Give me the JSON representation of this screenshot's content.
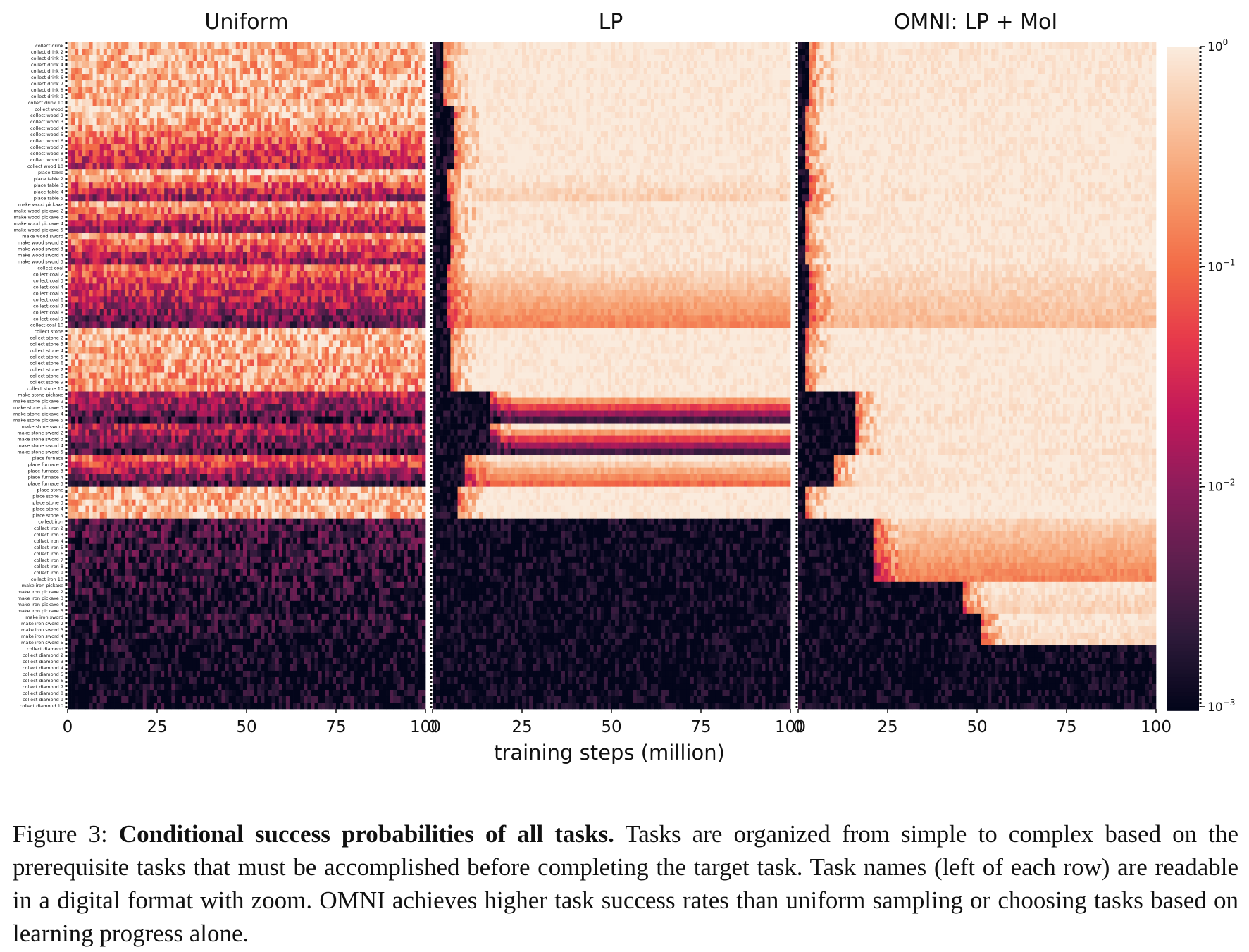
{
  "chart_data": {
    "type": "heatmap",
    "panels": [
      {
        "title": "Uniform",
        "key": "uniform"
      },
      {
        "title": "LP",
        "key": "lp"
      },
      {
        "title": "OMNI: LP + MoI",
        "key": "omni"
      }
    ],
    "xlabel": "training steps (million)",
    "x_ticks": [
      "0",
      "25",
      "50",
      "75",
      "100"
    ],
    "xlim": [
      0,
      100
    ],
    "colorbar": {
      "scale": "log",
      "range": [
        0.001,
        1
      ],
      "tick_labels": [
        {
          "base": "10",
          "exp": "0",
          "value": 1
        },
        {
          "base": "10",
          "exp": "−1",
          "value": 0.1
        },
        {
          "base": "10",
          "exp": "−2",
          "value": 0.01
        },
        {
          "base": "10",
          "exp": "−3",
          "value": 0.001
        }
      ],
      "colors": [
        "#03051a",
        "#2e1a3a",
        "#5d1f4e",
        "#8c1d5b",
        "#c1185a",
        "#e6384b",
        "#f26a46",
        "#f69968",
        "#f9c3a0",
        "#faebdd"
      ]
    },
    "task_groups": [
      {
        "name": "collect drink",
        "rows": 10,
        "difficulty": {
          "uniform": [
            0.35,
            0.35
          ],
          "lp": [
            0.97,
            0.97
          ],
          "omni": [
            0.9,
            0.92
          ]
        },
        "onset": {
          "lp": 2,
          "omni": 2
        }
      },
      {
        "name": "collect wood",
        "rows": 10,
        "difficulty": {
          "uniform": [
            0.7,
            0.02
          ],
          "lp": [
            0.96,
            0.95
          ],
          "omni": [
            0.96,
            0.95
          ]
        },
        "onset": {
          "lp": 5,
          "omni": 1
        }
      },
      {
        "name": "place table",
        "rows": 5,
        "difficulty": {
          "uniform": [
            0.5,
            0.01
          ],
          "lp": [
            0.95,
            0.6
          ],
          "omni": [
            0.96,
            0.85
          ]
        },
        "onset": {
          "lp": 3,
          "omni": 2
        }
      },
      {
        "name": "make wood pickaxe",
        "rows": 5,
        "difficulty": {
          "uniform": [
            0.25,
            0.01
          ],
          "lp": [
            0.95,
            0.85
          ],
          "omni": [
            0.96,
            0.9
          ]
        },
        "onset": {
          "lp": 4,
          "omni": 1
        }
      },
      {
        "name": "make wood sword",
        "rows": 5,
        "difficulty": {
          "uniform": [
            0.25,
            0.01
          ],
          "lp": [
            0.95,
            0.85
          ],
          "omni": [
            0.96,
            0.9
          ]
        },
        "onset": {
          "lp": 4,
          "omni": 1
        }
      },
      {
        "name": "collect coal",
        "rows": 10,
        "difficulty": {
          "uniform": [
            0.1,
            0.005
          ],
          "lp": [
            0.8,
            0.15
          ],
          "omni": [
            0.8,
            0.4
          ]
        },
        "onset": {
          "lp": 3,
          "omni": 2
        }
      },
      {
        "name": "collect stone",
        "rows": 10,
        "difficulty": {
          "uniform": [
            0.4,
            0.2
          ],
          "lp": [
            0.97,
            0.96
          ],
          "omni": [
            0.96,
            0.96
          ]
        },
        "onset": {
          "lp": 4,
          "omni": 1
        }
      },
      {
        "name": "make stone pickaxe",
        "rows": 5,
        "difficulty": {
          "uniform": [
            0.02,
            0.003
          ],
          "lp": [
            0.95,
            0.003
          ],
          "omni": [
            0.96,
            0.85
          ]
        },
        "onset": {
          "lp": 15,
          "omni": 15
        }
      },
      {
        "name": "make stone sword",
        "rows": 5,
        "difficulty": {
          "uniform": [
            0.02,
            0.003
          ],
          "lp": [
            0.95,
            0.003
          ],
          "omni": [
            0.96,
            0.85
          ]
        },
        "onset": {
          "lp": 15,
          "omni": 15
        }
      },
      {
        "name": "place furnace",
        "rows": 5,
        "difficulty": {
          "uniform": [
            0.1,
            0.003
          ],
          "lp": [
            0.95,
            0.1
          ],
          "omni": [
            0.96,
            0.85
          ]
        },
        "onset": {
          "lp": 8,
          "omni": 9
        }
      },
      {
        "name": "place stone",
        "rows": 5,
        "difficulty": {
          "uniform": [
            0.4,
            0.35
          ],
          "lp": [
            0.97,
            0.96
          ],
          "omni": [
            0.96,
            0.96
          ]
        },
        "onset": {
          "lp": 6,
          "omni": 1
        }
      },
      {
        "name": "collect iron",
        "rows": 10,
        "difficulty": {
          "uniform": [
            0.003,
            0.002
          ],
          "lp": [
            0.01,
            0.003
          ],
          "omni": [
            0.6,
            0.15
          ]
        },
        "onset": {
          "lp": 100,
          "omni": 20
        }
      },
      {
        "name": "make iron pickaxe",
        "rows": 5,
        "difficulty": {
          "uniform": [
            0.002,
            0.001
          ],
          "lp": [
            0.003,
            0.002
          ],
          "omni": [
            0.9,
            0.6
          ]
        },
        "onset": {
          "lp": 100,
          "omni": 45
        }
      },
      {
        "name": "make iron sword",
        "rows": 5,
        "difficulty": {
          "uniform": [
            0.002,
            0.001
          ],
          "lp": [
            0.003,
            0.002
          ],
          "omni": [
            0.9,
            0.7
          ]
        },
        "onset": {
          "lp": 100,
          "omni": 50
        }
      },
      {
        "name": "collect diamond",
        "rows": 10,
        "difficulty": {
          "uniform": [
            0.001,
            0.001
          ],
          "lp": [
            0.001,
            0.001
          ],
          "omni": [
            0.002,
            0.001
          ]
        },
        "onset": {
          "lp": 100,
          "omni": 100
        }
      }
    ]
  },
  "caption": {
    "label": "Figure 3:",
    "bold": "Conditional success probabilities of all tasks.",
    "text": "Tasks are organized from simple to complex based on the prerequisite tasks that must be accomplished before completing the target task. Task names (left of each row) are readable in a digital format with zoom. OMNI achieves higher task success rates than uniform sampling or choosing tasks based on learning progress alone."
  }
}
